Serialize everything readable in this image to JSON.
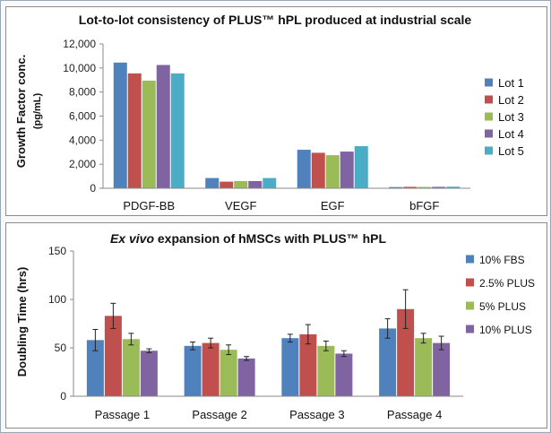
{
  "chart_data": [
    {
      "type": "bar",
      "title": "Lot-to-lot consistency of PLUS™ hPL produced at industrial scale",
      "ylabel_line1": "Growth Factor conc.",
      "ylabel_line2": "(pg/mL)",
      "xlabel": "",
      "categories": [
        "PDGF-BB",
        "VEGF",
        "EGF",
        "bFGF"
      ],
      "ylim": [
        0,
        12000
      ],
      "yticks": [
        "0",
        "2,000",
        "4,000",
        "6,000",
        "8,000",
        "10,000",
        "12,000"
      ],
      "ytick_values": [
        0,
        2000,
        4000,
        6000,
        8000,
        10000,
        12000
      ],
      "legend_position": "right",
      "grid": false,
      "series": [
        {
          "name": "Lot 1",
          "color": "#4f81bd",
          "values": [
            10450,
            850,
            3200,
            100
          ]
        },
        {
          "name": "Lot 2",
          "color": "#c0504d",
          "values": [
            9550,
            550,
            2950,
            120
          ]
        },
        {
          "name": "Lot 3",
          "color": "#9bbb59",
          "values": [
            8950,
            600,
            2750,
            110
          ]
        },
        {
          "name": "Lot 4",
          "color": "#8064a2",
          "values": [
            10250,
            600,
            3050,
            120
          ]
        },
        {
          "name": "Lot 5",
          "color": "#4bacc6",
          "values": [
            9550,
            850,
            3500,
            130
          ]
        }
      ]
    },
    {
      "type": "bar",
      "title_italic": "Ex vivo",
      "title_rest": " expansion of hMSCs  with PLUS™ hPL",
      "ylabel": "Doubling Time (hrs)",
      "xlabel": "",
      "categories": [
        "Passage 1",
        "Passage 2",
        "Passage 3",
        "Passage 4"
      ],
      "ylim": [
        0,
        150
      ],
      "yticks": [
        "0",
        "50",
        "100",
        "150"
      ],
      "ytick_values": [
        0,
        50,
        100,
        150
      ],
      "legend_position": "right",
      "grid": false,
      "error_bars": true,
      "series": [
        {
          "name": "10% FBS",
          "color": "#4f81bd",
          "values": [
            58,
            52,
            60,
            70
          ],
          "errors": [
            11,
            4,
            4,
            10
          ]
        },
        {
          "name": "2.5% PLUS",
          "color": "#c0504d",
          "values": [
            83,
            55,
            64,
            90
          ],
          "errors": [
            13,
            5,
            10,
            20
          ]
        },
        {
          "name": "5% PLUS",
          "color": "#9bbb59",
          "values": [
            59,
            48,
            52,
            60
          ],
          "errors": [
            6,
            5,
            5,
            5
          ]
        },
        {
          "name": "10% PLUS",
          "color": "#8064a2",
          "values": [
            47,
            39,
            44,
            55
          ],
          "errors": [
            2,
            2,
            3,
            7
          ]
        }
      ]
    }
  ]
}
